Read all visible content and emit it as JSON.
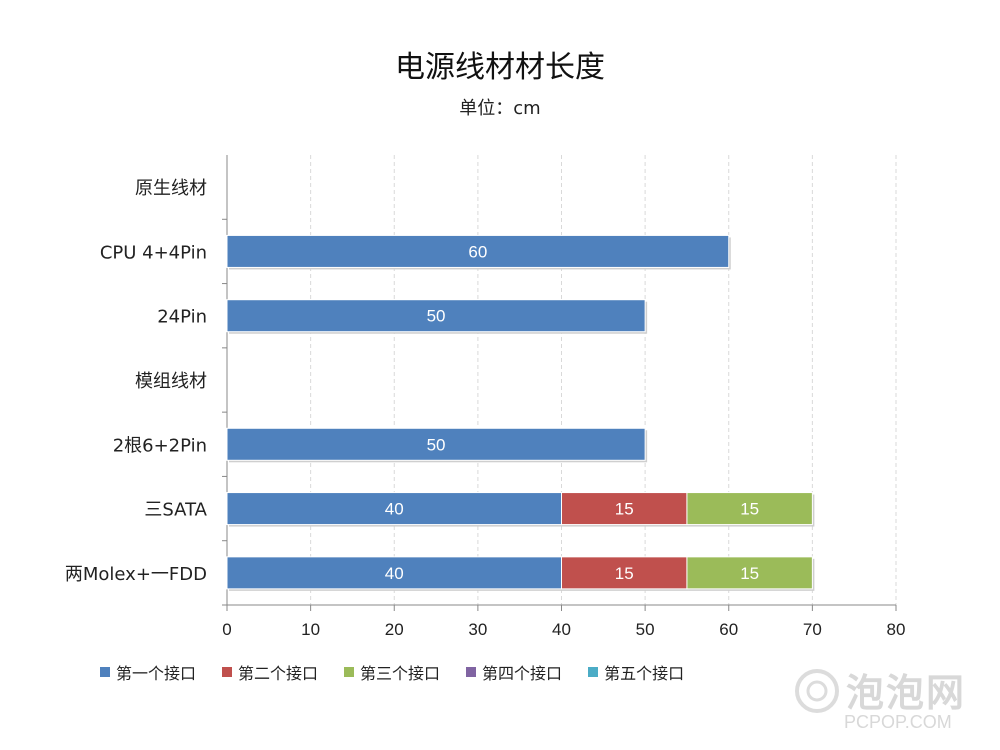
{
  "title": "电源线材材长度",
  "subtitle": "单位：cm",
  "colors": {
    "series1": "#4F81BD",
    "series2": "#C0504D",
    "series3": "#9BBB59",
    "series4": "#8064A2",
    "series5": "#4BACC6",
    "grid": "#d9d9d9"
  },
  "chart_data": {
    "type": "bar",
    "orientation": "horizontal",
    "stacked": true,
    "categories": [
      "原生线材",
      "CPU 4+4Pin",
      "24Pin",
      "模组线材",
      "2根6+2Pin",
      "三SATA",
      "两Molex+一FDD"
    ],
    "series": [
      {
        "name": "第一个接口",
        "values": [
          null,
          60,
          50,
          null,
          50,
          40,
          40
        ]
      },
      {
        "name": "第二个接口",
        "values": [
          null,
          null,
          null,
          null,
          null,
          15,
          15
        ]
      },
      {
        "name": "第三个接口",
        "values": [
          null,
          null,
          null,
          null,
          null,
          15,
          15
        ]
      },
      {
        "name": "第四个接口",
        "values": [
          null,
          null,
          null,
          null,
          null,
          null,
          null
        ]
      },
      {
        "name": "第五个接口",
        "values": [
          null,
          null,
          null,
          null,
          null,
          null,
          null
        ]
      }
    ],
    "xlim": [
      0,
      80
    ],
    "xticks": [
      0,
      10,
      20,
      30,
      40,
      50,
      60,
      70,
      80
    ],
    "grid": "vertical dashed",
    "legend": "bottom",
    "data_labels": true
  },
  "watermark": {
    "text": "泡泡网",
    "subtext": "PCPOP.COM"
  }
}
